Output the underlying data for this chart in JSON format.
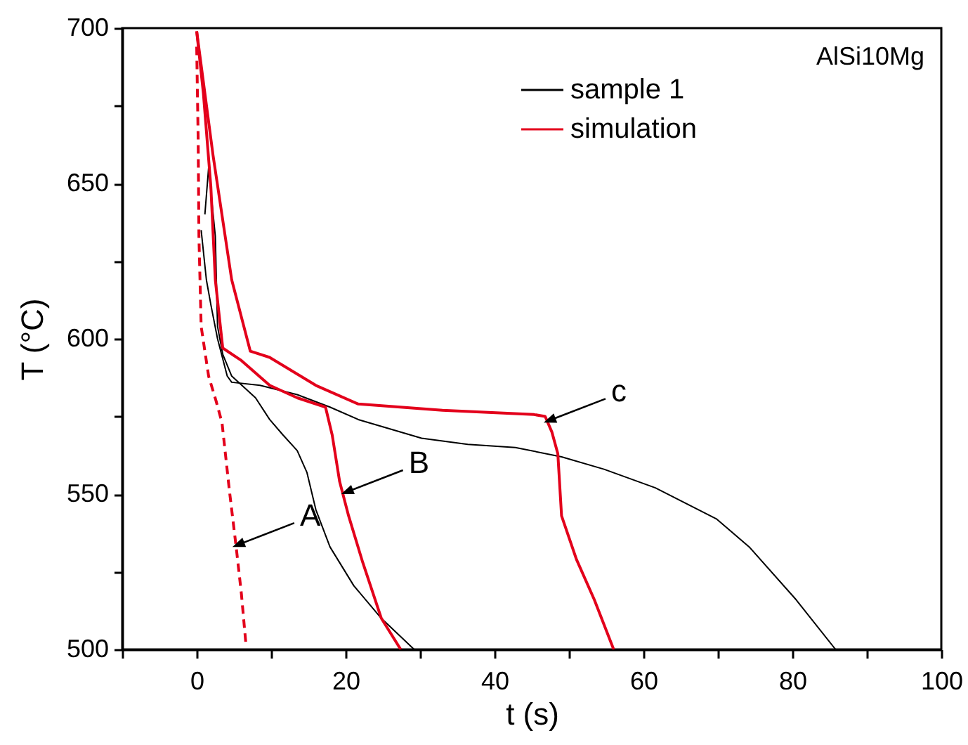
{
  "chart_data": {
    "type": "line",
    "xlabel": "t (s)",
    "ylabel": "T (°C)",
    "xlim": [
      -10,
      100
    ],
    "xticks": [
      {
        "value": -10,
        "label": null
      },
      0,
      {
        "value": 10,
        "label": null
      },
      20,
      {
        "value": 30,
        "label": null
      },
      40,
      {
        "value": 50,
        "label": null
      },
      60,
      {
        "value": 70,
        "label": null
      },
      80,
      {
        "value": 90,
        "label": null
      },
      100
    ],
    "ylim": [
      500,
      700
    ],
    "yticks": [
      500,
      {
        "value": 525,
        "label": null
      },
      550,
      {
        "value": 575,
        "label": null
      },
      600,
      {
        "value": 625,
        "label": null
      },
      650,
      {
        "value": 675,
        "label": null
      },
      700
    ],
    "legend": "top right",
    "grid": false,
    "annotations": [
      "AlSi10Mg",
      {
        "text": "A",
        "x": 4.8,
        "y": 533
      },
      {
        "text": "B",
        "x": 19.4,
        "y": 550
      },
      {
        "text": "c",
        "x": 46.6,
        "y": 573
      }
    ],
    "series": [
      {
        "name": "sample 1",
        "color": "#000000",
        "x": [
          1.1,
          1.6,
          2.5,
          2.8,
          3.5,
          4.7,
          7.9,
          9.8,
          11.6,
          13.5,
          14.8,
          16,
          17.9,
          21.1,
          24.8,
          29.2
        ],
        "values": [
          640,
          655,
          633,
          604,
          595,
          588,
          581,
          574,
          569,
          564,
          557,
          545,
          533,
          520.5,
          510,
          500
        ]
      },
      {
        "color": "#000000",
        "x": [
          0.6,
          1.3,
          1.9,
          2.8,
          4.1,
          4.7,
          8.5,
          13.5,
          17.9,
          21.7,
          30.2,
          36.4,
          42.8,
          49,
          54.7,
          61.6,
          69.8,
          74.2,
          80.5,
          85.8
        ],
        "values": [
          635,
          619,
          611,
          600,
          588,
          586,
          585,
          582,
          578,
          574,
          568,
          566,
          565,
          562,
          558,
          552,
          542,
          533,
          516,
          500
        ]
      },
      {
        "name": "simulation",
        "color": "#e3001b",
        "x": [
          0,
          0.9,
          1.9,
          2.5,
          3.5,
          6,
          9.8,
          13.5,
          17.3,
          18.2,
          19.2,
          20.4,
          22.3,
          24.8,
          27.4
        ],
        "values": [
          699,
          679,
          649,
          619,
          597,
          593,
          585,
          581,
          578,
          569,
          554,
          543,
          528,
          510,
          500
        ]
      },
      {
        "color": "#e3001b",
        "x": [
          0,
          2.2,
          4.7,
          7.2,
          9.8,
          16,
          21.7,
          33,
          45.3,
          46.8,
          47.7,
          48.5,
          49,
          51,
          53.4,
          56
        ],
        "values": [
          699,
          659,
          619,
          596,
          594,
          585,
          579,
          577,
          575.6,
          575,
          570,
          563,
          543,
          529,
          516,
          500
        ]
      },
      {
        "color": "#e3001b",
        "line_style": "dashed",
        "x": [
          0,
          0.2,
          0.3,
          0.6,
          1.6,
          2.6,
          3.4,
          4.4,
          5.3,
          6,
          6.6
        ],
        "values": [
          694,
          664,
          633,
          604,
          588,
          580,
          573,
          551,
          533,
          518,
          502
        ]
      }
    ]
  }
}
